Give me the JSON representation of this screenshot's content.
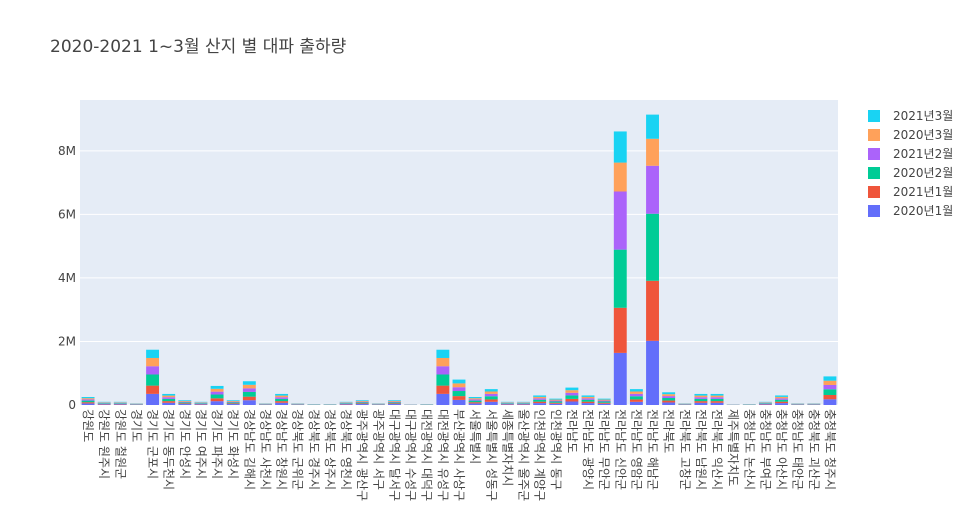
{
  "chart_data": {
    "type": "bar",
    "stacked": true,
    "title": "2020-2021 1~3월 산지 별 대파 출하량",
    "categories": [
      "강원도",
      "강원도 원주시",
      "강원도 철원군",
      "경기도",
      "경기도 군포시",
      "경기도 동두천시",
      "경기도 안성시",
      "경기도 여주시",
      "경기도 파주시",
      "경기도 화성시",
      "경상남도 김해시",
      "경상남도 사천시",
      "경상남도 창원시",
      "경상북도 군위군",
      "경상북도 경주시",
      "경상북도 상주시",
      "경상북도 영천시",
      "광주광역시 광산구",
      "광주광역시 서구",
      "대구광역시 달서구",
      "대구광역시 수성구",
      "대전광역시 대덕구",
      "대전광역시 유성구",
      "부산광역시 사상구",
      "서울특별시",
      "서울특별시 성동구",
      "세종특별자치시",
      "울산광역시 울주군",
      "인천광역시 계양구",
      "인천광역시 동구",
      "전라남도",
      "전라남도 광양시",
      "전라남도 무안군",
      "전라남도 신안군",
      "전라남도 영암군",
      "전라남도 해남군",
      "전라북도",
      "전라북도 고창군",
      "전라북도 남원시",
      "전라북도 익산시",
      "제주특별자치도",
      "충청남도 논산시",
      "충청남도 부여군",
      "충청남도 아산시",
      "충청남도 태안군",
      "충청북도 괴산군",
      "충청북도 청주시"
    ],
    "series": [
      {
        "name": "2020년1월",
        "color": "#636efa",
        "values": [
          50000,
          20000,
          20000,
          10000,
          350000,
          70000,
          30000,
          20000,
          120000,
          30000,
          150000,
          10000,
          70000,
          10000,
          6000,
          6000,
          20000,
          30000,
          10000,
          30000,
          4000,
          6000,
          350000,
          160000,
          50000,
          100000,
          20000,
          20000,
          60000,
          40000,
          110000,
          60000,
          40000,
          1640000,
          100000,
          2020000,
          80000,
          10000,
          70000,
          70000,
          4000,
          6000,
          20000,
          60000,
          10000,
          10000,
          180000
        ]
      },
      {
        "name": "2021년1월",
        "color": "#ef553b",
        "values": [
          38000,
          15000,
          15000,
          8000,
          260000,
          52000,
          22000,
          15000,
          90000,
          22000,
          112000,
          8000,
          52000,
          8000,
          4000,
          4000,
          15000,
          22000,
          8000,
          22000,
          3000,
          4000,
          260000,
          120000,
          38000,
          75000,
          15000,
          15000,
          45000,
          30000,
          82000,
          45000,
          30000,
          1420000,
          75000,
          1890000,
          60000,
          8000,
          52000,
          52000,
          3000,
          4000,
          15000,
          45000,
          8000,
          8000,
          135000
        ]
      },
      {
        "name": "2020년2월",
        "color": "#00cc96",
        "values": [
          50000,
          20000,
          20000,
          10000,
          350000,
          70000,
          30000,
          20000,
          120000,
          30000,
          150000,
          10000,
          70000,
          10000,
          6000,
          6000,
          20000,
          30000,
          10000,
          30000,
          4000,
          6000,
          350000,
          160000,
          50000,
          100000,
          20000,
          20000,
          60000,
          40000,
          110000,
          60000,
          40000,
          1830000,
          100000,
          2110000,
          80000,
          10000,
          70000,
          70000,
          4000,
          6000,
          20000,
          60000,
          10000,
          10000,
          180000
        ]
      },
      {
        "name": "2021년2월",
        "color": "#ab63fa",
        "values": [
          38000,
          15000,
          15000,
          8000,
          260000,
          52000,
          22000,
          15000,
          90000,
          22000,
          112000,
          8000,
          52000,
          8000,
          4000,
          4000,
          15000,
          22000,
          8000,
          22000,
          3000,
          4000,
          260000,
          120000,
          38000,
          75000,
          15000,
          15000,
          45000,
          30000,
          82000,
          45000,
          30000,
          1830000,
          75000,
          1510000,
          60000,
          8000,
          52000,
          52000,
          3000,
          4000,
          15000,
          45000,
          8000,
          8000,
          135000
        ]
      },
      {
        "name": "2020년3월",
        "color": "#ffa15a",
        "values": [
          38000,
          15000,
          15000,
          8000,
          260000,
          52000,
          22000,
          15000,
          90000,
          22000,
          112000,
          8000,
          52000,
          8000,
          4000,
          4000,
          15000,
          22000,
          8000,
          22000,
          3000,
          4000,
          260000,
          120000,
          38000,
          75000,
          15000,
          15000,
          45000,
          30000,
          82000,
          45000,
          30000,
          910000,
          75000,
          850000,
          60000,
          8000,
          52000,
          52000,
          3000,
          4000,
          15000,
          45000,
          8000,
          8000,
          135000
        ]
      },
      {
        "name": "2021년3월",
        "color": "#19d3f3",
        "values": [
          38000,
          15000,
          15000,
          8000,
          260000,
          52000,
          22000,
          15000,
          90000,
          22000,
          112000,
          8000,
          52000,
          8000,
          4000,
          4000,
          15000,
          22000,
          8000,
          22000,
          3000,
          4000,
          260000,
          120000,
          38000,
          75000,
          15000,
          15000,
          45000,
          30000,
          82000,
          45000,
          30000,
          980000,
          75000,
          760000,
          60000,
          8000,
          52000,
          52000,
          3000,
          4000,
          15000,
          45000,
          8000,
          8000,
          135000
        ]
      }
    ],
    "ylim": [
      0,
      9600000
    ],
    "yticks": [
      0,
      {
        "value": 2000000,
        "label": "2M"
      },
      {
        "value": 4000000,
        "label": "4M"
      },
      {
        "value": 6000000,
        "label": "6M"
      },
      {
        "value": 8000000,
        "label": "8M"
      }
    ],
    "grid": true,
    "legend": "right"
  }
}
